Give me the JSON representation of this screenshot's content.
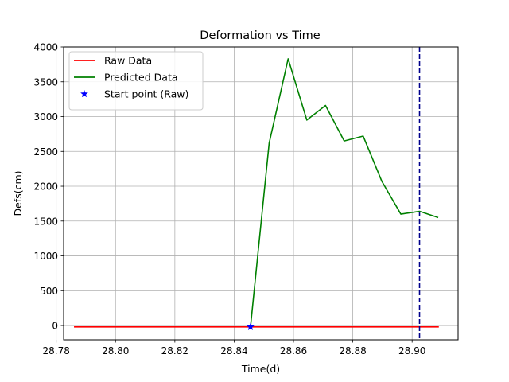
{
  "chart_data": {
    "type": "line",
    "title": "Deformation vs Time",
    "xlabel": "Time(d)",
    "ylabel": "Defs(cm)",
    "xlim": [
      28.7825,
      28.9155
    ],
    "ylim": [
      -205,
      4000
    ],
    "xticks": [
      "28.78",
      "28.80",
      "28.82",
      "28.84",
      "28.86",
      "28.88",
      "28.90"
    ],
    "yticks": [
      "0",
      "500",
      "1000",
      "1500",
      "2000",
      "2500",
      "3000",
      "3500",
      "4000"
    ],
    "grid": true,
    "legend_position": "top-left",
    "series": [
      {
        "name": "Raw Data",
        "color": "#ff0000",
        "style": "solid",
        "x": [
          28.786,
          28.909
        ],
        "y": [
          -20,
          -20
        ]
      },
      {
        "name": "Predicted Data",
        "color": "#008000",
        "style": "solid",
        "x": [
          28.8455,
          28.8518,
          28.8582,
          28.8645,
          28.8708,
          28.8771,
          28.8835,
          28.8898,
          28.8962,
          28.9025,
          28.9088
        ],
        "y": [
          -20,
          2620,
          3830,
          2950,
          3160,
          2650,
          2720,
          2070,
          1600,
          1640,
          1550
        ]
      },
      {
        "name": "Start point (Raw)",
        "color": "#0000ff",
        "style": "marker-star",
        "x": [
          28.8455
        ],
        "y": [
          -20
        ]
      }
    ],
    "annotations": [
      {
        "type": "vertical-line",
        "x": 28.9025,
        "color": "#00008b",
        "style": "dashed"
      }
    ]
  }
}
